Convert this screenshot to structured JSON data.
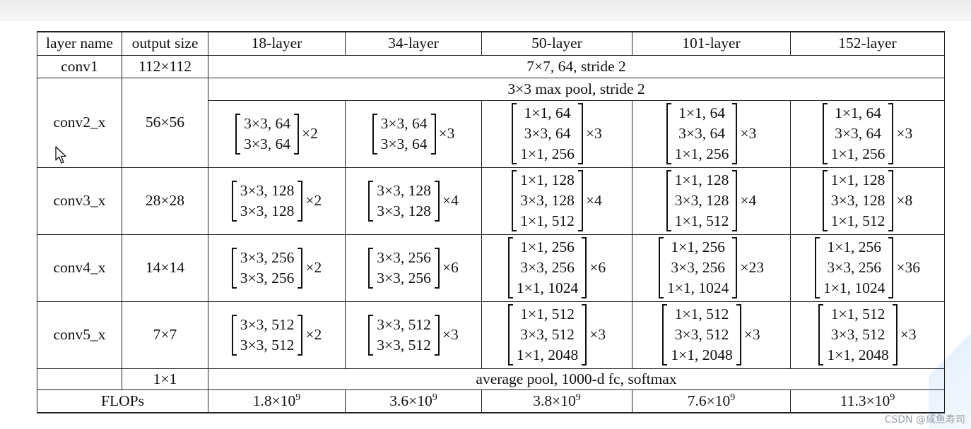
{
  "header": [
    "layer name",
    "output size",
    "18-layer",
    "34-layer",
    "50-layer",
    "101-layer",
    "152-layer"
  ],
  "conv1": {
    "name": "conv1",
    "size": "112×112",
    "spec": "7×7, 64, stride 2"
  },
  "conv2": {
    "name": "conv2_x",
    "size": "56×56",
    "pool": "3×3 max pool, stride 2",
    "l18": {
      "lines": [
        "3×3, 64",
        "3×3, 64"
      ],
      "mult": "×2"
    },
    "l34": {
      "lines": [
        "3×3, 64",
        "3×3, 64"
      ],
      "mult": "×3"
    },
    "l50": {
      "lines": [
        "1×1, 64",
        "3×3, 64",
        "1×1, 256"
      ],
      "mult": "×3"
    },
    "l101": {
      "lines": [
        "1×1, 64",
        "3×3, 64",
        "1×1, 256"
      ],
      "mult": "×3"
    },
    "l152": {
      "lines": [
        "1×1, 64",
        "3×3, 64",
        "1×1, 256"
      ],
      "mult": "×3"
    }
  },
  "conv3": {
    "name": "conv3_x",
    "size": "28×28",
    "l18": {
      "lines": [
        "3×3, 128",
        "3×3, 128"
      ],
      "mult": "×2"
    },
    "l34": {
      "lines": [
        "3×3, 128",
        "3×3, 128"
      ],
      "mult": "×4"
    },
    "l50": {
      "lines": [
        "1×1, 128",
        "3×3, 128",
        "1×1, 512"
      ],
      "mult": "×4"
    },
    "l101": {
      "lines": [
        "1×1, 128",
        "3×3, 128",
        "1×1, 512"
      ],
      "mult": "×4"
    },
    "l152": {
      "lines": [
        "1×1, 128",
        "3×3, 128",
        "1×1, 512"
      ],
      "mult": "×8"
    }
  },
  "conv4": {
    "name": "conv4_x",
    "size": "14×14",
    "l18": {
      "lines": [
        "3×3, 256",
        "3×3, 256"
      ],
      "mult": "×2"
    },
    "l34": {
      "lines": [
        "3×3, 256",
        "3×3, 256"
      ],
      "mult": "×6"
    },
    "l50": {
      "lines": [
        "1×1, 256",
        "3×3, 256",
        "1×1, 1024"
      ],
      "mult": "×6"
    },
    "l101": {
      "lines": [
        "1×1, 256",
        "3×3, 256",
        "1×1, 1024"
      ],
      "mult": "×23"
    },
    "l152": {
      "lines": [
        "1×1, 256",
        "3×3, 256",
        "1×1, 1024"
      ],
      "mult": "×36"
    }
  },
  "conv5": {
    "name": "conv5_x",
    "size": "7×7",
    "l18": {
      "lines": [
        "3×3, 512",
        "3×3, 512"
      ],
      "mult": "×2"
    },
    "l34": {
      "lines": [
        "3×3, 512",
        "3×3, 512"
      ],
      "mult": "×3"
    },
    "l50": {
      "lines": [
        "1×1, 512",
        "3×3, 512",
        "1×1, 2048"
      ],
      "mult": "×3"
    },
    "l101": {
      "lines": [
        "1×1, 512",
        "3×3, 512",
        "1×1, 2048"
      ],
      "mult": "×3"
    },
    "l152": {
      "lines": [
        "1×1, 512",
        "3×3, 512",
        "1×1, 2048"
      ],
      "mult": "×3"
    }
  },
  "final": {
    "size": "1×1",
    "spec": "average pool, 1000-d fc, softmax"
  },
  "flops": {
    "label": "FLOPs",
    "values": [
      {
        "base": "1.8×10",
        "exp": "9"
      },
      {
        "base": "3.6×10",
        "exp": "9"
      },
      {
        "base": "3.8×10",
        "exp": "9"
      },
      {
        "base": "7.6×10",
        "exp": "9"
      },
      {
        "base": "11.3×10",
        "exp": "9"
      }
    ]
  },
  "watermark": "CSDN @咸鱼寿司"
}
